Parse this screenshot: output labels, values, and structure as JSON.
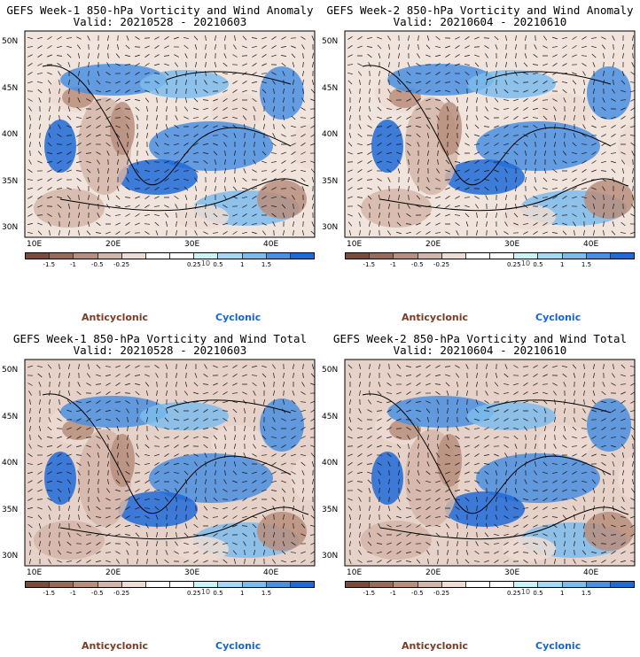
{
  "panels": [
    {
      "title": "GEFS Week-1 850-hPa Vorticity and Wind Anomaly",
      "valid": "Valid: 20210528 - 20210603"
    },
    {
      "title": "GEFS Week-2 850-hPa Vorticity and Wind Anomaly",
      "valid": "Valid: 20210604 - 20210610"
    },
    {
      "title": "GEFS Week-1 850-hPa Vorticity and Wind Total",
      "valid": "Valid: 20210528 - 20210603"
    },
    {
      "title": "GEFS Week-2 850-hPa Vorticity and Wind Total",
      "valid": "Valid: 20210604 - 20210610"
    }
  ],
  "lat_labels": [
    "50N",
    "45N",
    "40N",
    "35N",
    "30N"
  ],
  "lon_labels": [
    "10E",
    "20E",
    "30E",
    "40E"
  ],
  "colorbar": {
    "colors": [
      "#7b4a3a",
      "#9a6a58",
      "#b88e7c",
      "#d4b6a8",
      "#ecdcd4",
      "#ffffff",
      "#ffffff",
      "#c8f4f8",
      "#a4d8f4",
      "#7cbcec",
      "#4a8fe0",
      "#1e6ad8"
    ],
    "labels": [
      "-1.5",
      "-1",
      "-0.5",
      "-0.25",
      "0.25",
      "0.5",
      "1",
      "1.5"
    ],
    "unit": "10"
  },
  "legend": {
    "anticyclonic": "Anticyclonic",
    "cyclonic": "Cyclonic"
  },
  "colors": {
    "anticyclonic": "#7b3b25",
    "cyclonic": "#1565d6"
  }
}
